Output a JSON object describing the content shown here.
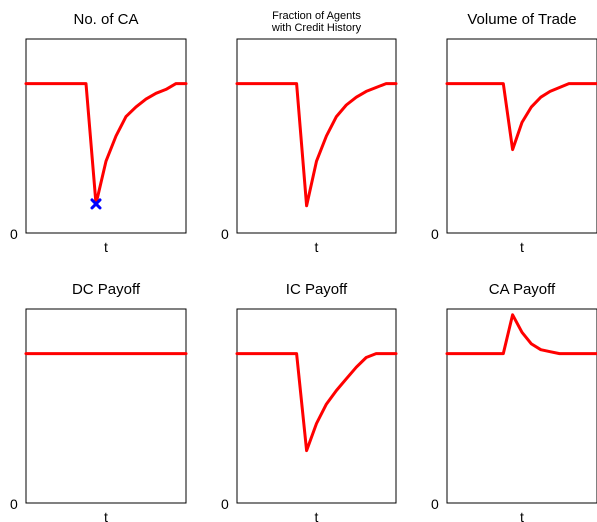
{
  "colors": {
    "line": "#ff0000",
    "marker": "#0000ff",
    "axes": "#000000"
  },
  "chart_data": [
    {
      "type": "line",
      "title": "No. of CA",
      "xlabel": "t",
      "ytick_labels": [
        "0"
      ],
      "ylim": [
        0,
        1
      ],
      "x": [
        0,
        1,
        2,
        3,
        4,
        5,
        6,
        7,
        8,
        9,
        10,
        11,
        12,
        13,
        14,
        15,
        16
      ],
      "y": [
        0.77,
        0.77,
        0.77,
        0.77,
        0.77,
        0.77,
        0.77,
        0.15,
        0.37,
        0.5,
        0.6,
        0.65,
        0.69,
        0.72,
        0.74,
        0.77,
        0.77
      ],
      "marker": {
        "x": 7,
        "y": 0.15,
        "symbol": "x"
      }
    },
    {
      "type": "line",
      "title": "Fraction of Agents\nwith Credit History",
      "xlabel": "t",
      "ytick_labels": [
        "0"
      ],
      "ylim": [
        0,
        1
      ],
      "x": [
        0,
        1,
        2,
        3,
        4,
        5,
        6,
        7,
        8,
        9,
        10,
        11,
        12,
        13,
        14,
        15,
        16
      ],
      "y": [
        0.77,
        0.77,
        0.77,
        0.77,
        0.77,
        0.77,
        0.77,
        0.14,
        0.37,
        0.5,
        0.6,
        0.66,
        0.7,
        0.73,
        0.75,
        0.77,
        0.77
      ]
    },
    {
      "type": "line",
      "title": "Volume of Trade",
      "xlabel": "t",
      "ytick_labels": [
        "0"
      ],
      "ylim": [
        0,
        1
      ],
      "x": [
        0,
        1,
        2,
        3,
        4,
        5,
        6,
        7,
        8,
        9,
        10,
        11,
        12,
        13,
        14,
        15,
        16
      ],
      "y": [
        0.77,
        0.77,
        0.77,
        0.77,
        0.77,
        0.77,
        0.77,
        0.43,
        0.57,
        0.65,
        0.7,
        0.73,
        0.75,
        0.77,
        0.77,
        0.77,
        0.77
      ]
    },
    {
      "type": "line",
      "title": "DC Payoff",
      "xlabel": "t",
      "ytick_labels": [
        "0"
      ],
      "ylim": [
        0,
        1
      ],
      "x": [
        0,
        16
      ],
      "y": [
        0.77,
        0.77
      ]
    },
    {
      "type": "line",
      "title": "IC Payoff",
      "xlabel": "t",
      "ytick_labels": [
        "0"
      ],
      "ylim": [
        0,
        1
      ],
      "x": [
        0,
        1,
        2,
        3,
        4,
        5,
        6,
        7,
        8,
        9,
        10,
        11,
        12,
        13,
        14,
        15,
        16
      ],
      "y": [
        0.77,
        0.77,
        0.77,
        0.77,
        0.77,
        0.77,
        0.77,
        0.27,
        0.41,
        0.51,
        0.58,
        0.64,
        0.7,
        0.75,
        0.77,
        0.77,
        0.77
      ]
    },
    {
      "type": "line",
      "title": "CA Payoff",
      "xlabel": "t",
      "ytick_labels": [
        "0"
      ],
      "ylim": [
        0,
        1
      ],
      "x": [
        0,
        1,
        2,
        3,
        4,
        5,
        6,
        7,
        8,
        9,
        10,
        11,
        12,
        13,
        14,
        15,
        16
      ],
      "y": [
        0.77,
        0.77,
        0.77,
        0.77,
        0.77,
        0.77,
        0.77,
        0.97,
        0.88,
        0.82,
        0.79,
        0.78,
        0.77,
        0.77,
        0.77,
        0.77,
        0.77
      ]
    }
  ]
}
